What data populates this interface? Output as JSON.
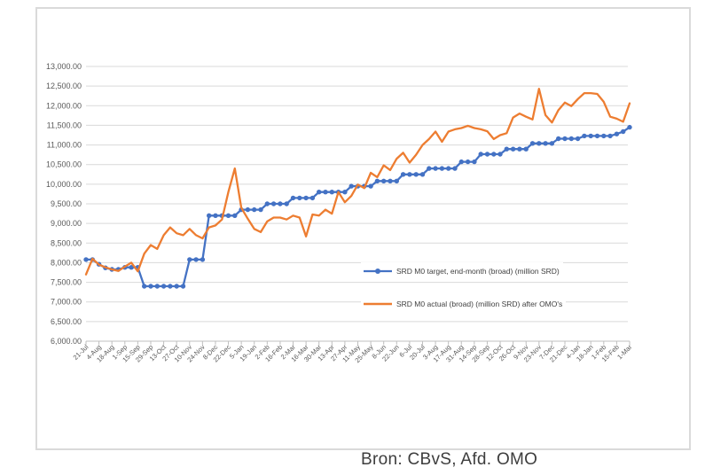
{
  "caption": "Bron: CBvS, Afd. OMO",
  "colors": {
    "target_series": "#4472C4",
    "actual_series": "#ED7D31",
    "gridline": "#D9D9D9",
    "axis_line": "#BFBFBF",
    "tick_label": "#595959",
    "frame_border": "#DADADA",
    "background": "#FFFFFF"
  },
  "chart_data": {
    "type": "line",
    "title": "",
    "xlabel": "",
    "ylabel": "",
    "ylim": [
      6000,
      13000
    ],
    "y_tick_step": 500,
    "grid": "horizontal",
    "legend_position": "inside-right-middle",
    "y_tick_labels": [
      "6,000.00",
      "6,500.00",
      "7,000.00",
      "7,500.00",
      "8,000.00",
      "8,500.00",
      "9,000.00",
      "9,500.00",
      "10,000.00",
      "10,500.00",
      "11,000.00",
      "11,500.00",
      "12,000.00",
      "12,500.00",
      "13,000.00"
    ],
    "x_note": "weekly observations; axis labels shown every second week",
    "x_tick_labels": [
      "21-Jul",
      "4-Aug",
      "18-Aug",
      "1-Sep",
      "15-Sep",
      "29-Sep",
      "13-Oct",
      "27-Oct",
      "10-Nov",
      "24-Nov",
      "8-Dec",
      "22-Dec",
      "5-Jan",
      "19-Jan",
      "2-Feb",
      "16-Feb",
      "2-Mar",
      "16-Mar",
      "30-Mar",
      "13-Apr",
      "27-Apr",
      "11-May",
      "25-May",
      "8-Jun",
      "22-Jun",
      "6-Jul",
      "20-Jul",
      "3-Aug",
      "17-Aug",
      "31-Aug",
      "14-Sep",
      "28-Sep",
      "12-Oct",
      "26-Oct",
      "9-Nov",
      "23-Nov",
      "7-Dec",
      "21-Dec",
      "4-Jan",
      "18-Jan",
      "1-Feb",
      "15-Feb",
      "1-Mar"
    ],
    "series": [
      {
        "name": "SRD M0 target, end-month (broad)  (million SRD)",
        "color": "#4472C4",
        "marker": "circle",
        "values": [
          8080,
          8080,
          7960,
          7870,
          7830,
          7830,
          7880,
          7880,
          7880,
          7400,
          7400,
          7400,
          7400,
          7400,
          7400,
          7400,
          8080,
          8080,
          8080,
          9200,
          9200,
          9200,
          9200,
          9200,
          9350,
          9350,
          9350,
          9350,
          9500,
          9500,
          9500,
          9500,
          9650,
          9650,
          9650,
          9650,
          9800,
          9800,
          9800,
          9800,
          9800,
          9950,
          9950,
          9950,
          9950,
          10080,
          10080,
          10080,
          10080,
          10250,
          10250,
          10250,
          10250,
          10400,
          10400,
          10400,
          10400,
          10400,
          10570,
          10570,
          10570,
          10765,
          10765,
          10765,
          10765,
          10895,
          10895,
          10895,
          10895,
          11040,
          11040,
          11040,
          11040,
          11160,
          11160,
          11160,
          11160,
          11230,
          11230,
          11230,
          11230,
          11230,
          11280,
          11340,
          11450
        ]
      },
      {
        "name": "SRD M0 actual (broad) (million SRD) after OMO's",
        "color": "#ED7D31",
        "marker": "none",
        "values": [
          7700,
          8100,
          7950,
          7880,
          7830,
          7790,
          7900,
          8000,
          7780,
          8230,
          8450,
          8350,
          8700,
          8900,
          8750,
          8700,
          8860,
          8700,
          8620,
          8900,
          8950,
          9100,
          9800,
          10400,
          9400,
          9120,
          8860,
          8780,
          9050,
          9150,
          9150,
          9100,
          9200,
          9150,
          8670,
          9230,
          9200,
          9350,
          9250,
          9800,
          9540,
          9700,
          9990,
          9900,
          10290,
          10180,
          10480,
          10360,
          10650,
          10800,
          10550,
          10750,
          11000,
          11150,
          11340,
          11080,
          11340,
          11400,
          11430,
          11490,
          11430,
          11400,
          11350,
          11150,
          11250,
          11300,
          11700,
          11800,
          11720,
          11650,
          12430,
          11760,
          11570,
          11890,
          12080,
          11990,
          12170,
          12320,
          12320,
          12300,
          12100,
          11720,
          11670,
          11590,
          12060
        ]
      }
    ]
  }
}
